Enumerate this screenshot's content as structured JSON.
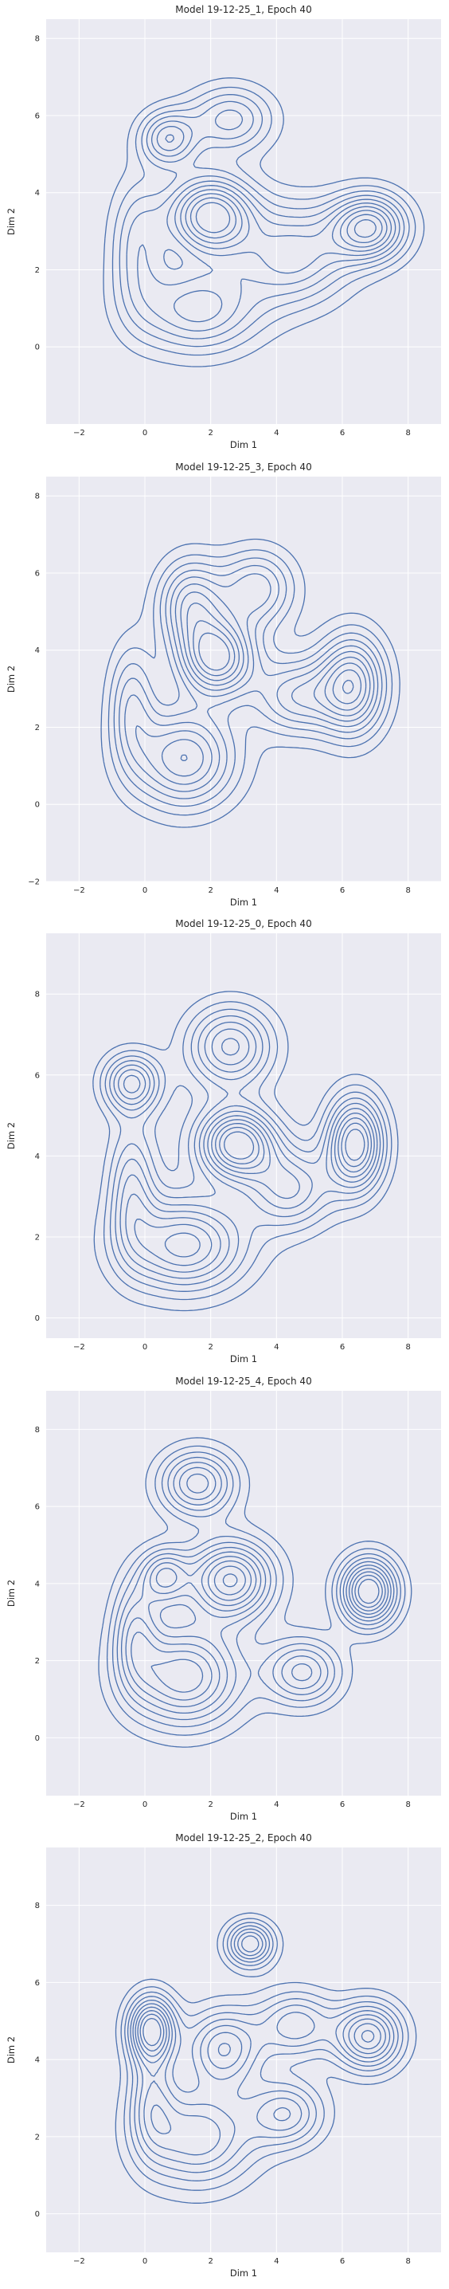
{
  "chart_data": [
    {
      "type": "kde-contour",
      "title": "Model 19-12-25_1, Epoch 40",
      "xlabel": "Dim 1",
      "ylabel": "Dim 2",
      "xlim": [
        -3,
        9
      ],
      "ylim": [
        -2,
        8.5
      ],
      "xticks": [
        -2,
        0,
        2,
        4,
        6,
        8
      ],
      "yticks": [
        0,
        2,
        4,
        6,
        8
      ],
      "grid": true,
      "background": "#eaeaf2",
      "line_color": "#4c72b0",
      "levels": 10,
      "centers": [
        {
          "x": 2.0,
          "y": 3.4,
          "sx": 0.9,
          "sy": 0.7,
          "w": 1.0
        },
        {
          "x": 6.8,
          "y": 3.1,
          "sx": 0.8,
          "sy": 0.6,
          "w": 0.9
        },
        {
          "x": 0.7,
          "y": 5.4,
          "sx": 0.6,
          "sy": 0.5,
          "w": 0.6
        },
        {
          "x": 2.6,
          "y": 5.9,
          "sx": 0.9,
          "sy": 0.6,
          "w": 0.5
        },
        {
          "x": 4.5,
          "y": 2.4,
          "sx": 1.2,
          "sy": 0.9,
          "w": 0.6
        },
        {
          "x": 1.6,
          "y": 1.0,
          "sx": 1.3,
          "sy": 0.8,
          "w": 0.6
        },
        {
          "x": -0.2,
          "y": 2.6,
          "sx": 0.6,
          "sy": 1.2,
          "w": 0.4
        }
      ]
    },
    {
      "type": "kde-contour",
      "title": "Model 19-12-25_3, Epoch 40",
      "xlabel": "Dim 1",
      "ylabel": "Dim 2",
      "xlim": [
        -3,
        9
      ],
      "ylim": [
        -2,
        8.5
      ],
      "xticks": [
        -2,
        0,
        2,
        4,
        6,
        8
      ],
      "yticks": [
        -2,
        0,
        2,
        4,
        6,
        8
      ],
      "grid": true,
      "background": "#eaeaf2",
      "line_color": "#4c72b0",
      "levels": 10,
      "centers": [
        {
          "x": 2.2,
          "y": 3.8,
          "sx": 0.8,
          "sy": 0.7,
          "w": 0.9
        },
        {
          "x": 6.3,
          "y": 3.1,
          "sx": 0.7,
          "sy": 0.9,
          "w": 0.8
        },
        {
          "x": 1.4,
          "y": 5.2,
          "sx": 0.7,
          "sy": 0.8,
          "w": 0.6
        },
        {
          "x": 3.4,
          "y": 5.6,
          "sx": 0.8,
          "sy": 0.7,
          "w": 0.5
        },
        {
          "x": 4.6,
          "y": 2.8,
          "sx": 0.9,
          "sy": 0.7,
          "w": 0.5
        },
        {
          "x": 1.2,
          "y": 1.2,
          "sx": 1.1,
          "sy": 0.9,
          "w": 0.7
        },
        {
          "x": -0.4,
          "y": 2.6,
          "sx": 0.5,
          "sy": 1.1,
          "w": 0.4
        }
      ]
    },
    {
      "type": "kde-contour",
      "title": "Model 19-12-25_0, Epoch 40",
      "xlabel": "Dim 1",
      "ylabel": "Dim 2",
      "xlim": [
        -3,
        9
      ],
      "ylim": [
        -0.5,
        9.5
      ],
      "xticks": [
        -2,
        0,
        2,
        4,
        6,
        8
      ],
      "yticks": [
        0,
        2,
        4,
        6,
        8
      ],
      "grid": true,
      "background": "#eaeaf2",
      "line_color": "#4c72b0",
      "levels": 10,
      "centers": [
        {
          "x": 2.8,
          "y": 4.3,
          "sx": 0.8,
          "sy": 0.6,
          "w": 0.9
        },
        {
          "x": 6.4,
          "y": 4.3,
          "sx": 0.6,
          "sy": 0.8,
          "w": 0.9
        },
        {
          "x": -0.4,
          "y": 5.8,
          "sx": 0.6,
          "sy": 0.5,
          "w": 0.6
        },
        {
          "x": 2.6,
          "y": 6.7,
          "sx": 0.9,
          "sy": 0.7,
          "w": 0.6
        },
        {
          "x": 4.4,
          "y": 3.2,
          "sx": 0.9,
          "sy": 0.7,
          "w": 0.5
        },
        {
          "x": 1.2,
          "y": 1.8,
          "sx": 1.3,
          "sy": 0.8,
          "w": 0.7
        },
        {
          "x": -0.4,
          "y": 3.2,
          "sx": 0.5,
          "sy": 1.1,
          "w": 0.4
        }
      ]
    },
    {
      "type": "kde-contour",
      "title": "Model 19-12-25_4, Epoch 40",
      "xlabel": "Dim 1",
      "ylabel": "Dim 2",
      "xlim": [
        -3,
        9
      ],
      "ylim": [
        -1.5,
        9
      ],
      "xticks": [
        -2,
        0,
        2,
        4,
        6,
        8
      ],
      "yticks": [
        0,
        2,
        4,
        6,
        8
      ],
      "grid": true,
      "background": "#eaeaf2",
      "line_color": "#4c72b0",
      "levels": 10,
      "centers": [
        {
          "x": 2.6,
          "y": 4.1,
          "sx": 0.9,
          "sy": 0.7,
          "w": 0.8
        },
        {
          "x": 6.8,
          "y": 3.8,
          "sx": 0.6,
          "sy": 0.6,
          "w": 0.9
        },
        {
          "x": 1.6,
          "y": 6.6,
          "sx": 0.8,
          "sy": 0.6,
          "w": 0.6
        },
        {
          "x": 0.6,
          "y": 4.2,
          "sx": 0.5,
          "sy": 0.5,
          "w": 0.5
        },
        {
          "x": 4.8,
          "y": 1.7,
          "sx": 0.8,
          "sy": 0.6,
          "w": 0.5
        },
        {
          "x": 1.2,
          "y": 1.6,
          "sx": 1.2,
          "sy": 0.9,
          "w": 0.7
        },
        {
          "x": -0.3,
          "y": 2.8,
          "sx": 0.5,
          "sy": 1.0,
          "w": 0.4
        }
      ]
    },
    {
      "type": "kde-contour",
      "title": "Model 19-12-25_2, Epoch 40",
      "xlabel": "Dim 1",
      "ylabel": "Dim 2",
      "xlim": [
        -3,
        9
      ],
      "ylim": [
        -1,
        9.5
      ],
      "xticks": [
        -2,
        0,
        2,
        4,
        6,
        8
      ],
      "yticks": [
        0,
        2,
        4,
        6,
        8
      ],
      "grid": true,
      "background": "#eaeaf2",
      "line_color": "#4c72b0",
      "levels": 10,
      "centers": [
        {
          "x": 0.2,
          "y": 4.8,
          "sx": 0.5,
          "sy": 0.6,
          "w": 0.9
        },
        {
          "x": 3.2,
          "y": 7.0,
          "sx": 0.5,
          "sy": 0.4,
          "w": 0.7
        },
        {
          "x": 6.8,
          "y": 4.6,
          "sx": 0.7,
          "sy": 0.6,
          "w": 0.8
        },
        {
          "x": 2.4,
          "y": 4.3,
          "sx": 0.8,
          "sy": 0.7,
          "w": 0.6
        },
        {
          "x": 4.6,
          "y": 4.9,
          "sx": 0.8,
          "sy": 0.6,
          "w": 0.5
        },
        {
          "x": 4.3,
          "y": 2.6,
          "sx": 0.8,
          "sy": 0.6,
          "w": 0.5
        },
        {
          "x": 1.6,
          "y": 2.0,
          "sx": 1.2,
          "sy": 0.9,
          "w": 0.6
        },
        {
          "x": 0.2,
          "y": 3.0,
          "sx": 0.5,
          "sy": 1.0,
          "w": 0.4
        }
      ]
    }
  ]
}
